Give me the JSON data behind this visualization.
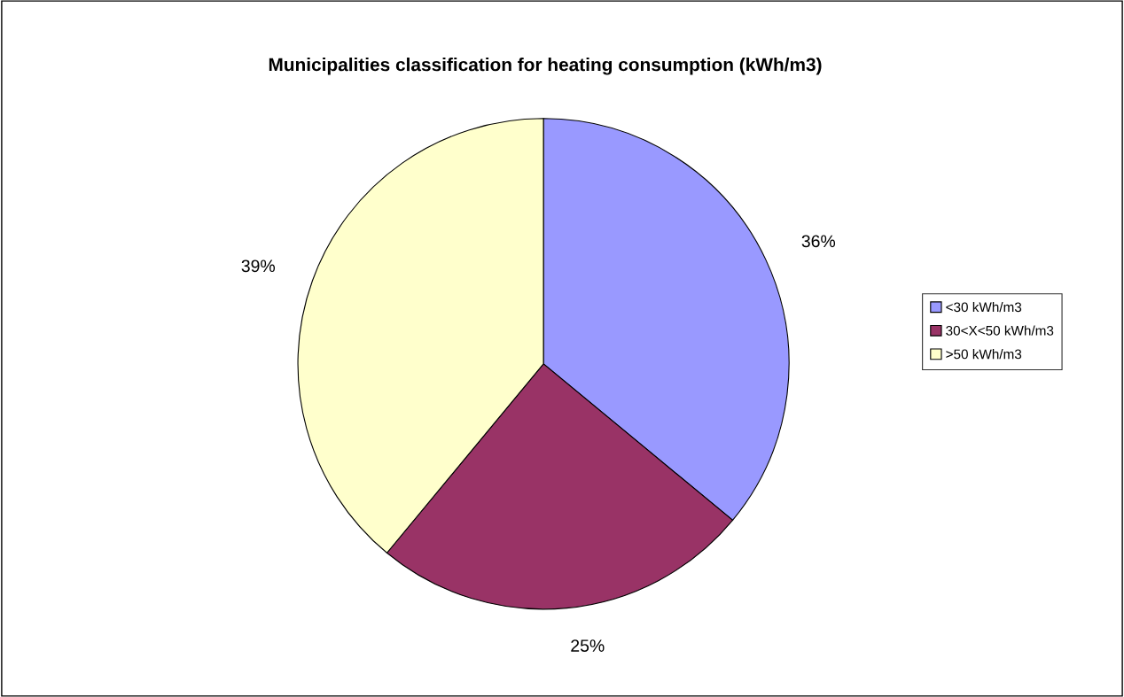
{
  "chart_data": {
    "type": "pie",
    "title": "Municipalities classification for heating consumption (kWh/m3)",
    "categories": [
      "<30 kWh/m3",
      "30<X<50 kWh/m3",
      ">50 kWh/m3"
    ],
    "values": [
      36,
      25,
      39
    ],
    "colors": [
      "#9999ff",
      "#993366",
      "#ffffcc"
    ],
    "value_labels": [
      "36%",
      "25%",
      "39%"
    ],
    "legend": "right"
  }
}
